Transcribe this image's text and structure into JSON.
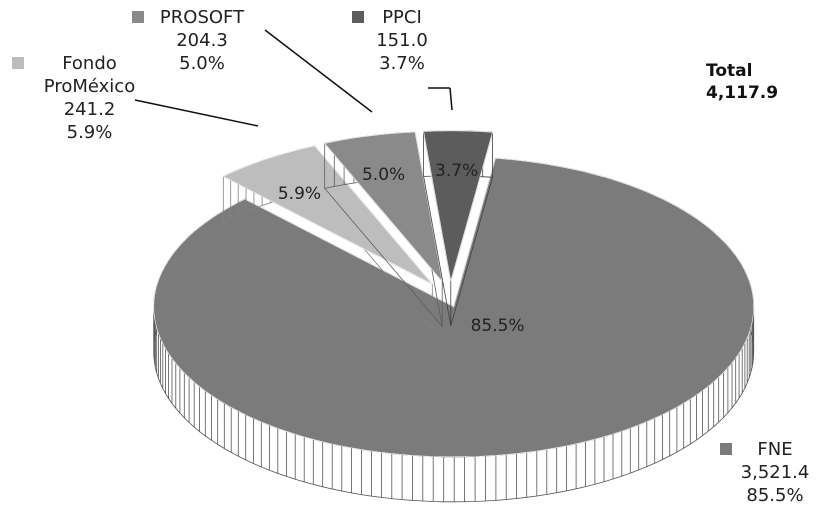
{
  "chart_data": {
    "type": "pie3d",
    "categories": [
      "FNE",
      "Fondo ProMéxico",
      "PROSOFT",
      "PPCI"
    ],
    "values": [
      3521.4,
      241.2,
      204.3,
      151.0
    ],
    "value_labels": [
      "3,521.4",
      "241.2",
      "204.3",
      "151.0"
    ],
    "percentages": [
      85.5,
      5.9,
      5.0,
      3.7
    ],
    "percentage_labels": [
      "85.5%",
      "5.9%",
      "5.0%",
      "3.7%"
    ],
    "colors": [
      "#7b7b7b",
      "#bdbdbd",
      "#8a8a8a",
      "#5c5c5c"
    ],
    "total_title": "Total",
    "total": 4117.9,
    "total_label": "4,117.9"
  }
}
